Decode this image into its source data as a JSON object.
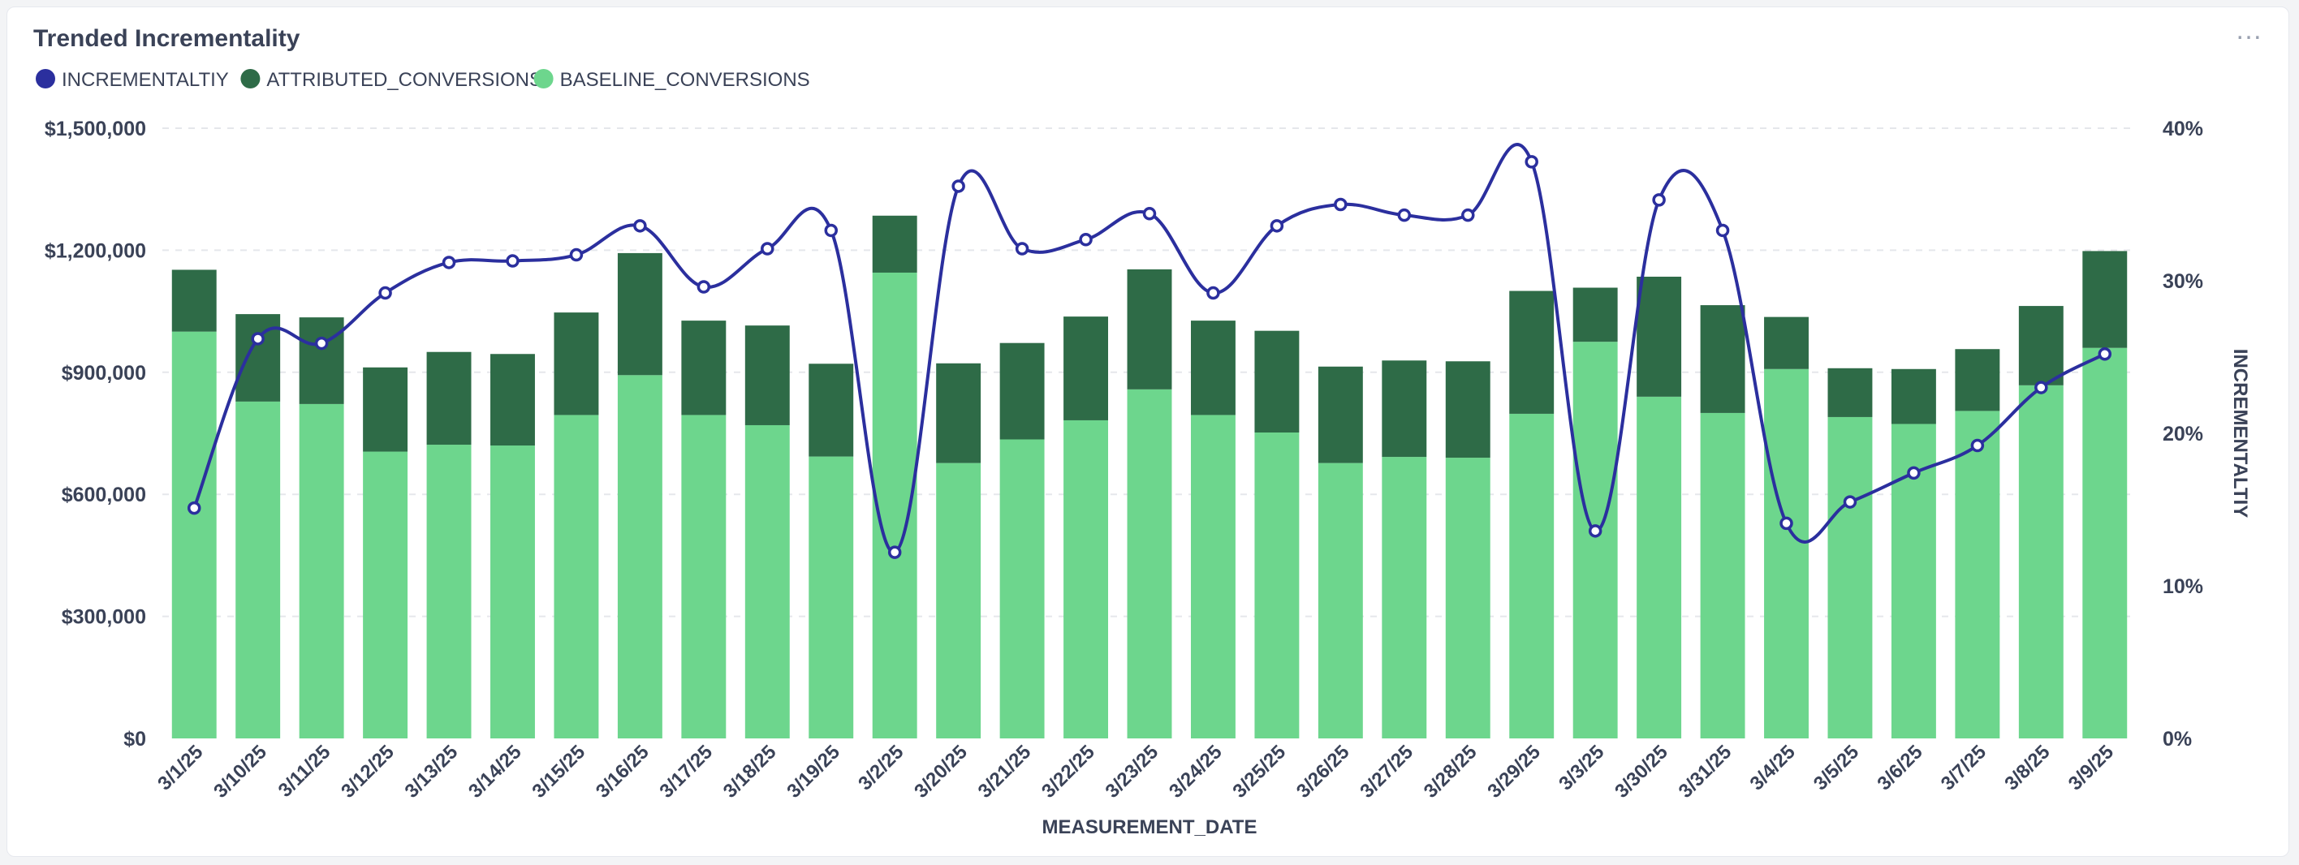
{
  "header": {
    "title": "Trended Incrementality",
    "menu_label": "…"
  },
  "colors": {
    "incrementality": "#2b2f9e",
    "attributed": "#2e6b47",
    "baseline": "#6dd68d",
    "axis_text": "#3a4257",
    "grid": "#e5e7eb"
  },
  "chart_data": {
    "type": "bar",
    "stacked": true,
    "title": "Trended Incrementality",
    "xlabel": "MEASUREMENT_DATE",
    "ylabel": "",
    "y2label": "INCREMENTALTIY",
    "ylim": [
      0,
      1500000
    ],
    "y2lim": [
      0,
      40
    ],
    "yticks": [
      "$0",
      "$300,000",
      "$600,000",
      "$900,000",
      "$1,200,000",
      "$1,500,000"
    ],
    "y2ticks": [
      "0%",
      "10%",
      "20%",
      "30%",
      "40%"
    ],
    "legend_position": "top-left",
    "categories": [
      "3/1/25",
      "3/10/25",
      "3/11/25",
      "3/12/25",
      "3/13/25",
      "3/14/25",
      "3/15/25",
      "3/16/25",
      "3/17/25",
      "3/18/25",
      "3/19/25",
      "3/2/25",
      "3/20/25",
      "3/21/25",
      "3/22/25",
      "3/23/25",
      "3/24/25",
      "3/25/25",
      "3/26/25",
      "3/27/25",
      "3/28/25",
      "3/29/25",
      "3/3/25",
      "3/30/25",
      "3/31/25",
      "3/4/25",
      "3/5/25",
      "3/6/25",
      "3/7/25",
      "3/8/25",
      "3/9/25"
    ],
    "series": [
      {
        "name": "BASELINE_CONVERSIONS",
        "type": "bar",
        "values": [
          1000000,
          828000,
          822000,
          705000,
          722000,
          720000,
          795000,
          893000,
          795000,
          770000,
          693000,
          1145000,
          677000,
          735000,
          782000,
          858000,
          795000,
          752000,
          677000,
          692000,
          690000,
          798000,
          975000,
          840000,
          800000,
          908000,
          790000,
          773000,
          805000,
          868000,
          960000
        ]
      },
      {
        "name": "ATTRIBUTED_CONVERSIONS",
        "type": "bar",
        "values": [
          152000,
          215000,
          213000,
          207000,
          228000,
          225000,
          252000,
          300000,
          232000,
          245000,
          228000,
          140000,
          245000,
          237000,
          255000,
          295000,
          232000,
          250000,
          237000,
          237000,
          237000,
          302000,
          133000,
          295000,
          265000,
          128000,
          120000,
          135000,
          152000,
          195000,
          238000
        ]
      },
      {
        "name": "INCREMENTALTIY",
        "type": "line",
        "axis": "right",
        "values": [
          15.1,
          26.2,
          25.9,
          29.2,
          31.2,
          31.3,
          31.7,
          33.6,
          29.6,
          32.1,
          33.3,
          12.2,
          36.2,
          32.1,
          32.7,
          34.4,
          29.2,
          33.6,
          35.0,
          34.3,
          34.3,
          37.8,
          13.6,
          35.3,
          33.3,
          14.1,
          15.5,
          17.4,
          19.2,
          23.0,
          25.2
        ]
      }
    ]
  }
}
